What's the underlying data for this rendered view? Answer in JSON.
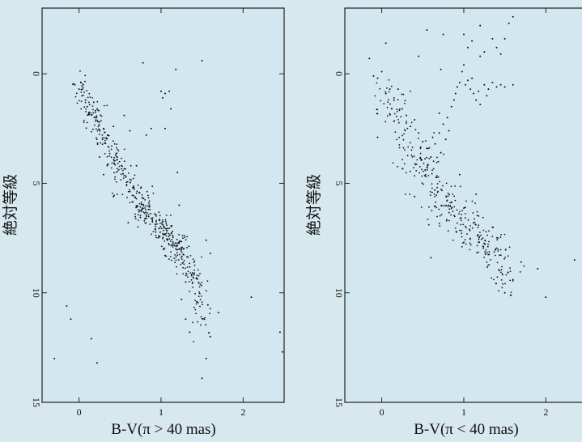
{
  "chart_data": [
    {
      "type": "scatter",
      "title": "",
      "xlabel": "B-V(π > 40 mas)",
      "ylabel": "絶対等級",
      "xlim": [
        -0.45,
        2.5
      ],
      "ylim": [
        15,
        -3
      ],
      "y_inverted": true,
      "xticks": [
        0,
        1,
        2
      ],
      "xtick_labels": [
        "0",
        "1",
        "2"
      ],
      "yticks": [
        0,
        5,
        10,
        15
      ],
      "ytick_labels": [
        "0",
        "5",
        "10",
        "15"
      ],
      "plot_background": "#d3e7f0",
      "marker_color": "#111111",
      "main_sequence_ridge": {
        "x": [
          0.0,
          0.1,
          0.3,
          0.5,
          0.7,
          0.9,
          1.1,
          1.3,
          1.45,
          1.5,
          1.55
        ],
        "y": [
          0.5,
          1.4,
          2.8,
          4.3,
          5.7,
          6.7,
          7.5,
          8.5,
          9.6,
          10.8,
          12.2
        ]
      },
      "points": [
        {
          "x": -0.05,
          "y": 0.5
        },
        {
          "x": 0.0,
          "y": 0.7
        },
        {
          "x": 0.08,
          "y": 1.2
        },
        {
          "x": 0.1,
          "y": 1.5
        },
        {
          "x": 0.12,
          "y": 1.8
        },
        {
          "x": 0.18,
          "y": 1.3
        },
        {
          "x": 0.2,
          "y": 2.0
        },
        {
          "x": 0.22,
          "y": 1.6
        },
        {
          "x": 0.25,
          "y": 2.2
        },
        {
          "x": 0.3,
          "y": 2.5
        },
        {
          "x": 0.35,
          "y": 2.8
        },
        {
          "x": 0.42,
          "y": 2.4
        },
        {
          "x": 0.55,
          "y": 1.9
        },
        {
          "x": 0.62,
          "y": 2.6
        },
        {
          "x": 0.88,
          "y": 2.5
        },
        {
          "x": 1.0,
          "y": 0.8
        },
        {
          "x": 1.02,
          "y": 1.1
        },
        {
          "x": 1.05,
          "y": 0.9
        },
        {
          "x": 1.1,
          "y": 0.8
        },
        {
          "x": 1.12,
          "y": 1.6
        },
        {
          "x": 1.05,
          "y": 2.5
        },
        {
          "x": 0.82,
          "y": 2.8
        },
        {
          "x": 0.78,
          "y": -0.5
        },
        {
          "x": 1.18,
          "y": -0.2
        },
        {
          "x": 1.5,
          "y": -0.6
        },
        {
          "x": 1.2,
          "y": 4.5
        },
        {
          "x": 1.22,
          "y": 6.0
        },
        {
          "x": 1.55,
          "y": 7.6
        },
        {
          "x": 1.6,
          "y": 8.2
        },
        {
          "x": 1.05,
          "y": 8.3
        },
        {
          "x": 0.6,
          "y": 6.8
        },
        {
          "x": 0.42,
          "y": 5.6
        },
        {
          "x": 0.3,
          "y": 4.6
        },
        {
          "x": 0.7,
          "y": 4.2
        },
        {
          "x": 0.25,
          "y": 3.8
        },
        {
          "x": 1.3,
          "y": 9.5
        },
        {
          "x": 1.25,
          "y": 10.3
        },
        {
          "x": 1.3,
          "y": 11.2
        },
        {
          "x": 1.35,
          "y": 11.8
        },
        {
          "x": 1.6,
          "y": 12.0
        },
        {
          "x": 1.55,
          "y": 13.0
        },
        {
          "x": 1.5,
          "y": 13.9
        },
        {
          "x": 1.7,
          "y": 10.9
        },
        {
          "x": 2.1,
          "y": 10.2
        },
        {
          "x": -0.15,
          "y": 10.6
        },
        {
          "x": -0.1,
          "y": 11.2
        },
        {
          "x": 0.15,
          "y": 12.1
        },
        {
          "x": -0.3,
          "y": 13.0
        },
        {
          "x": 0.22,
          "y": 13.2
        },
        {
          "x": 2.45,
          "y": 11.8
        },
        {
          "x": 2.48,
          "y": 12.7
        }
      ]
    },
    {
      "type": "scatter",
      "title": "",
      "xlabel": "B-V(π < 40 mas)",
      "ylabel": "絶対等級",
      "xlim": [
        -0.45,
        2.5
      ],
      "ylim": [
        15,
        -3
      ],
      "y_inverted": true,
      "xticks": [
        0,
        1,
        2
      ],
      "xtick_labels": [
        "0",
        "1",
        "2"
      ],
      "yticks": [
        0,
        5,
        10,
        15
      ],
      "ytick_labels": [
        "0",
        "5",
        "10",
        "15"
      ],
      "plot_background": "#d3e7f0",
      "marker_color": "#111111",
      "main_sequence_ridge": {
        "x": [
          0.0,
          0.1,
          0.3,
          0.5,
          0.7,
          0.9,
          1.1,
          1.3,
          1.45,
          1.55
        ],
        "y": [
          0.6,
          1.4,
          2.9,
          4.3,
          5.6,
          6.4,
          7.0,
          7.8,
          8.7,
          9.9
        ]
      },
      "points": [
        {
          "x": -0.1,
          "y": 0.1
        },
        {
          "x": -0.05,
          "y": 0.2
        },
        {
          "x": 0.0,
          "y": -0.1
        },
        {
          "x": 0.05,
          "y": 0.9
        },
        {
          "x": 0.1,
          "y": 0.7
        },
        {
          "x": 0.15,
          "y": 1.2
        },
        {
          "x": 0.2,
          "y": 0.7
        },
        {
          "x": 0.25,
          "y": 1.6
        },
        {
          "x": 0.3,
          "y": 1.9
        },
        {
          "x": 0.35,
          "y": 2.4
        },
        {
          "x": 0.4,
          "y": 2.1
        },
        {
          "x": 0.45,
          "y": 2.7
        },
        {
          "x": 0.5,
          "y": 3.1
        },
        {
          "x": 0.55,
          "y": 3.4
        },
        {
          "x": 0.6,
          "y": 3.8
        },
        {
          "x": 0.62,
          "y": 2.9
        },
        {
          "x": 0.65,
          "y": 3.2
        },
        {
          "x": 0.7,
          "y": 2.7
        },
        {
          "x": 0.72,
          "y": 3.6
        },
        {
          "x": 0.75,
          "y": 2.3
        },
        {
          "x": 0.78,
          "y": 3.0
        },
        {
          "x": 0.8,
          "y": 2.0
        },
        {
          "x": 0.82,
          "y": 2.6
        },
        {
          "x": 0.7,
          "y": 1.8
        },
        {
          "x": 0.85,
          "y": 1.5
        },
        {
          "x": 0.88,
          "y": 1.2
        },
        {
          "x": 0.9,
          "y": 0.9
        },
        {
          "x": 0.92,
          "y": 0.6
        },
        {
          "x": 0.95,
          "y": 0.4
        },
        {
          "x": 0.98,
          "y": -0.1
        },
        {
          "x": 1.0,
          "y": -0.4
        },
        {
          "x": 1.02,
          "y": 0.5
        },
        {
          "x": 1.05,
          "y": 0.3
        },
        {
          "x": 1.08,
          "y": 0.7
        },
        {
          "x": 1.1,
          "y": 0.2
        },
        {
          "x": 1.12,
          "y": 0.9
        },
        {
          "x": 1.15,
          "y": 1.2
        },
        {
          "x": 1.18,
          "y": 0.8
        },
        {
          "x": 1.2,
          "y": 1.4
        },
        {
          "x": 1.25,
          "y": 0.5
        },
        {
          "x": 1.28,
          "y": 1.0
        },
        {
          "x": 1.3,
          "y": 0.7
        },
        {
          "x": 1.35,
          "y": 0.4
        },
        {
          "x": 1.4,
          "y": 0.6
        },
        {
          "x": 1.45,
          "y": 0.5
        },
        {
          "x": 1.5,
          "y": 0.6
        },
        {
          "x": 1.6,
          "y": 0.5
        },
        {
          "x": 1.0,
          "y": -1.8
        },
        {
          "x": 1.05,
          "y": -1.2
        },
        {
          "x": 1.1,
          "y": -1.5
        },
        {
          "x": 1.2,
          "y": -0.8
        },
        {
          "x": 1.25,
          "y": -1.0
        },
        {
          "x": 1.35,
          "y": -1.6
        },
        {
          "x": 1.4,
          "y": -1.2
        },
        {
          "x": 1.45,
          "y": -0.9
        },
        {
          "x": 1.5,
          "y": -1.6
        },
        {
          "x": 1.55,
          "y": -2.3
        },
        {
          "x": 1.6,
          "y": -2.6
        },
        {
          "x": 1.2,
          "y": -2.2
        },
        {
          "x": 0.72,
          "y": -0.2
        },
        {
          "x": 0.45,
          "y": -0.8
        },
        {
          "x": 0.55,
          "y": -2.0
        },
        {
          "x": 0.05,
          "y": -1.4
        },
        {
          "x": -0.15,
          "y": -0.7
        },
        {
          "x": 0.75,
          "y": -1.8
        },
        {
          "x": -0.05,
          "y": 2.9
        },
        {
          "x": 0.6,
          "y": 8.4
        },
        {
          "x": 1.6,
          "y": 9.4
        },
        {
          "x": 1.7,
          "y": 8.6
        },
        {
          "x": 1.5,
          "y": 10.0
        },
        {
          "x": 2.0,
          "y": 10.2
        },
        {
          "x": 2.35,
          "y": 8.5
        },
        {
          "x": 2.45,
          "y": 9.2
        },
        {
          "x": 1.9,
          "y": 8.9
        },
        {
          "x": 0.4,
          "y": 5.6
        },
        {
          "x": 0.95,
          "y": 4.6
        },
        {
          "x": 1.15,
          "y": 5.5
        },
        {
          "x": 1.35,
          "y": 7.0
        }
      ]
    }
  ]
}
